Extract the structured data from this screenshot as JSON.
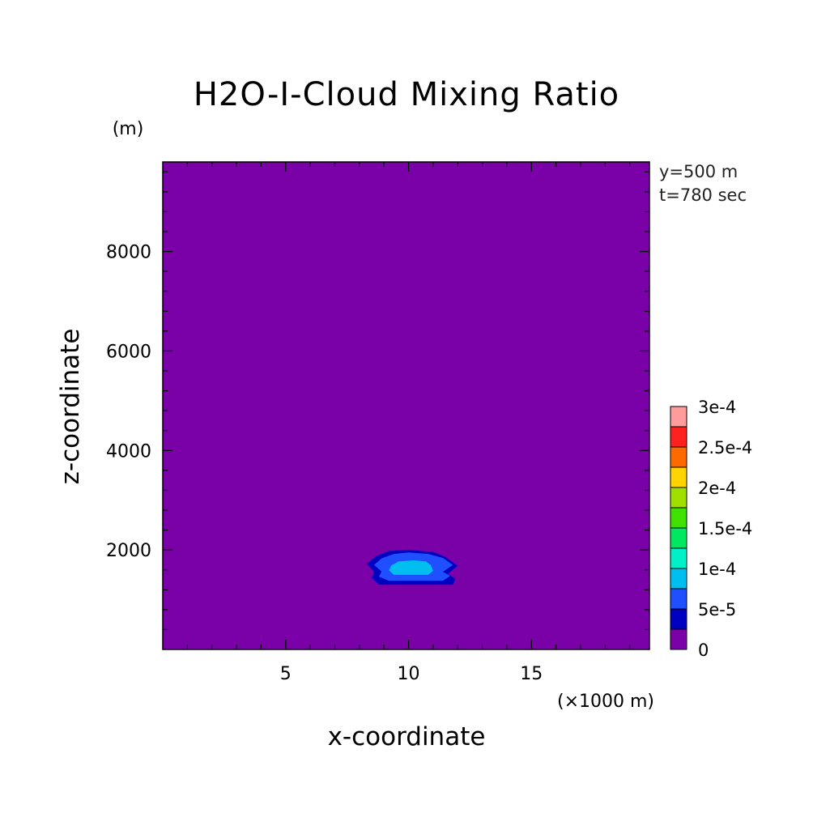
{
  "chart_data": {
    "type": "heatmap",
    "title": "H2O-I-Cloud Mixing Ratio",
    "xlabel": "x-coordinate",
    "ylabel": "z-coordinate",
    "x_unit": "(×1000 m)",
    "y_unit": "(m)",
    "xlim": [
      0,
      19.8
    ],
    "ylim": [
      0,
      9800
    ],
    "x_ticks": [
      5,
      10,
      15
    ],
    "x_tick_labels": [
      "5",
      "10",
      "15"
    ],
    "y_ticks": [
      2000,
      4000,
      6000,
      8000
    ],
    "y_tick_labels": [
      "2000",
      "4000",
      "6000",
      "8000"
    ],
    "annotations": [
      "y=500 m",
      "t=780 sec"
    ],
    "colorbar": {
      "levels": [
        0,
        2.5e-05,
        5e-05,
        7.5e-05,
        0.0001,
        0.000125,
        0.00015,
        0.000175,
        0.0002,
        0.000225,
        0.00025,
        0.000275,
        0.0003
      ],
      "colors": [
        "#7a00a8",
        "#0000c0",
        "#1f4fff",
        "#00bff0",
        "#00f0c8",
        "#00e860",
        "#40e000",
        "#a0e000",
        "#ffd400",
        "#ff6a00",
        "#ff2020",
        "#ff9c9c"
      ],
      "labels": [
        {
          "level": 0,
          "text": "0"
        },
        {
          "level": 5e-05,
          "text": "5e-5"
        },
        {
          "level": 0.0001,
          "text": "1e-4"
        },
        {
          "level": 0.00015,
          "text": "1.5e-4"
        },
        {
          "level": 0.0002,
          "text": "2e-4"
        },
        {
          "level": 0.00025,
          "text": "2.5e-4"
        },
        {
          "level": 0.0003,
          "text": "3e-4"
        }
      ]
    },
    "background_value": 0,
    "contours": [
      {
        "level": 2.5e-05,
        "color": "#0000c0",
        "points": [
          [
            8.8,
            1300
          ],
          [
            11.8,
            1300
          ],
          [
            11.9,
            1420
          ],
          [
            11.6,
            1520
          ],
          [
            12.0,
            1680
          ],
          [
            11.5,
            1860
          ],
          [
            11.0,
            1960
          ],
          [
            10.0,
            2000
          ],
          [
            9.2,
            1980
          ],
          [
            8.7,
            1880
          ],
          [
            8.3,
            1720
          ],
          [
            8.6,
            1560
          ],
          [
            8.5,
            1440
          ]
        ]
      },
      {
        "level": 5e-05,
        "color": "#1f4fff",
        "points": [
          [
            9.2,
            1380
          ],
          [
            11.4,
            1380
          ],
          [
            11.7,
            1480
          ],
          [
            11.4,
            1560
          ],
          [
            11.8,
            1700
          ],
          [
            11.4,
            1840
          ],
          [
            10.8,
            1920
          ],
          [
            10.0,
            1950
          ],
          [
            9.4,
            1920
          ],
          [
            8.9,
            1830
          ],
          [
            8.6,
            1700
          ],
          [
            8.9,
            1570
          ],
          [
            8.8,
            1460
          ]
        ]
      },
      {
        "level": 0.0001,
        "color": "#00bff0",
        "points": [
          [
            9.4,
            1500
          ],
          [
            10.8,
            1500
          ],
          [
            11.0,
            1580
          ],
          [
            10.9,
            1700
          ],
          [
            10.7,
            1770
          ],
          [
            10.2,
            1790
          ],
          [
            9.6,
            1770
          ],
          [
            9.3,
            1690
          ],
          [
            9.2,
            1590
          ]
        ]
      }
    ]
  }
}
